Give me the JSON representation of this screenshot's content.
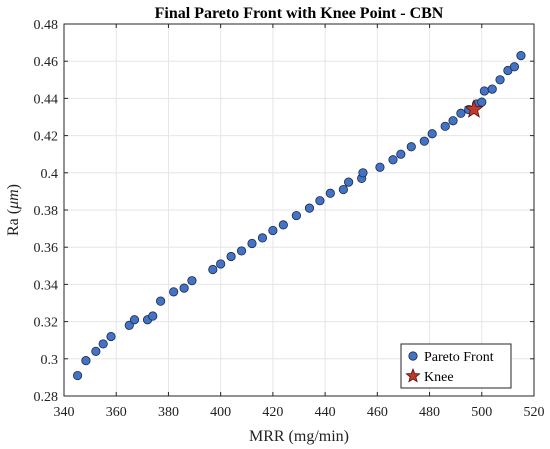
{
  "chart_data": {
    "type": "scatter",
    "title": "Final Pareto Front with Knee Point - CBN",
    "xlabel": "MRR (mg/min)",
    "ylabel_prefix": "Ra (",
    "ylabel_unit": "μm",
    "ylabel_suffix": ")",
    "xlim": [
      340,
      520
    ],
    "ylim": [
      0.28,
      0.48
    ],
    "xticks": [
      340,
      360,
      380,
      400,
      420,
      440,
      460,
      480,
      500,
      520
    ],
    "yticks": [
      0.28,
      0.3,
      0.32,
      0.34,
      0.36,
      0.38,
      0.4,
      0.42,
      0.44,
      0.46,
      0.48
    ],
    "ytick_labels": [
      "0.28",
      "0.3",
      "0.32",
      "0.34",
      "0.36",
      "0.38",
      "0.4",
      "0.42",
      "0.44",
      "0.46",
      "0.48"
    ],
    "grid": true,
    "legend_position": "bottom-right",
    "colors": {
      "pareto": "#4472C4",
      "pareto_edge": "#1a2a4a",
      "knee": "#C0392B",
      "knee_edge": "#5a0f0f"
    },
    "series": [
      {
        "name": "Pareto Front",
        "marker": "circle",
        "points": [
          [
            345.2,
            0.291
          ],
          [
            348.4,
            0.299
          ],
          [
            352.2,
            0.304
          ],
          [
            355.0,
            0.308
          ],
          [
            358.0,
            0.312
          ],
          [
            365.0,
            0.318
          ],
          [
            367.0,
            0.321
          ],
          [
            372.0,
            0.321
          ],
          [
            374.0,
            0.323
          ],
          [
            377.0,
            0.331
          ],
          [
            382.0,
            0.336
          ],
          [
            386.0,
            0.338
          ],
          [
            389.0,
            0.342
          ],
          [
            397.0,
            0.348
          ],
          [
            400.0,
            0.351
          ],
          [
            404.0,
            0.355
          ],
          [
            408.0,
            0.358
          ],
          [
            412.0,
            0.362
          ],
          [
            416.0,
            0.365
          ],
          [
            420.0,
            0.369
          ],
          [
            424.0,
            0.372
          ],
          [
            429.0,
            0.377
          ],
          [
            434.0,
            0.381
          ],
          [
            438.0,
            0.385
          ],
          [
            442.0,
            0.389
          ],
          [
            447.0,
            0.391
          ],
          [
            449.0,
            0.395
          ],
          [
            454.0,
            0.397
          ],
          [
            454.5,
            0.4
          ],
          [
            461.0,
            0.403
          ],
          [
            466.0,
            0.407
          ],
          [
            469.0,
            0.41
          ],
          [
            473.0,
            0.414
          ],
          [
            478.0,
            0.417
          ],
          [
            481.0,
            0.421
          ],
          [
            486.0,
            0.425
          ],
          [
            489.0,
            0.428
          ],
          [
            492.0,
            0.432
          ],
          [
            495.0,
            0.434
          ],
          [
            498.0,
            0.437
          ],
          [
            500.0,
            0.438
          ],
          [
            501.0,
            0.444
          ],
          [
            504.0,
            0.445
          ],
          [
            507.0,
            0.45
          ],
          [
            510.0,
            0.455
          ],
          [
            512.5,
            0.457
          ],
          [
            515.0,
            0.463
          ]
        ]
      },
      {
        "name": "Knee",
        "marker": "star",
        "points": [
          [
            497.0,
            0.434
          ]
        ]
      }
    ]
  }
}
